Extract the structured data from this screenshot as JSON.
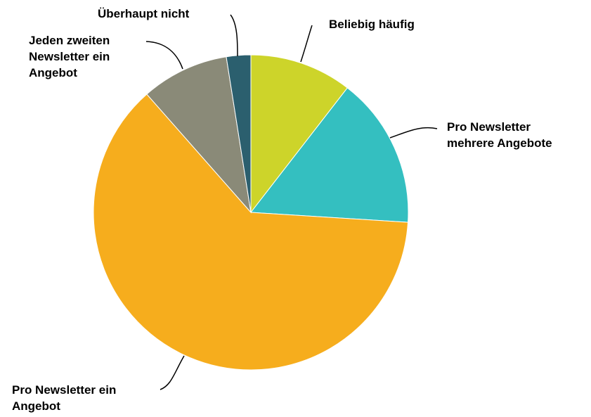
{
  "chart_data": {
    "type": "pie",
    "title": "",
    "start_angle_deg": 0,
    "direction": "clockwise",
    "slices": [
      {
        "label": "Beliebig häufig",
        "label_lines": [
          "Beliebig häufig"
        ],
        "value": 10.5,
        "color": "#cdd42a"
      },
      {
        "label": "Pro Newsletter mehrere Angebote",
        "label_lines": [
          "Pro Newsletter",
          "mehrere Angebote"
        ],
        "value": 15.5,
        "color": "#34bfc0"
      },
      {
        "label": "Pro Newsletter ein Angebot",
        "label_lines": [
          "Pro Newsletter ein",
          "Angebot"
        ],
        "value": 62.5,
        "color": "#f6ad1d"
      },
      {
        "label": "Jeden zweiten Newsletter ein Angebot",
        "label_lines": [
          "Jeden zweiten",
          "Newsletter ein",
          "Angebot"
        ],
        "value": 9.0,
        "color": "#8a8a78"
      },
      {
        "label": "Überhaupt nicht",
        "label_lines": [
          "Überhaupt nicht"
        ],
        "value": 2.5,
        "color": "#2b5f6e"
      }
    ]
  }
}
